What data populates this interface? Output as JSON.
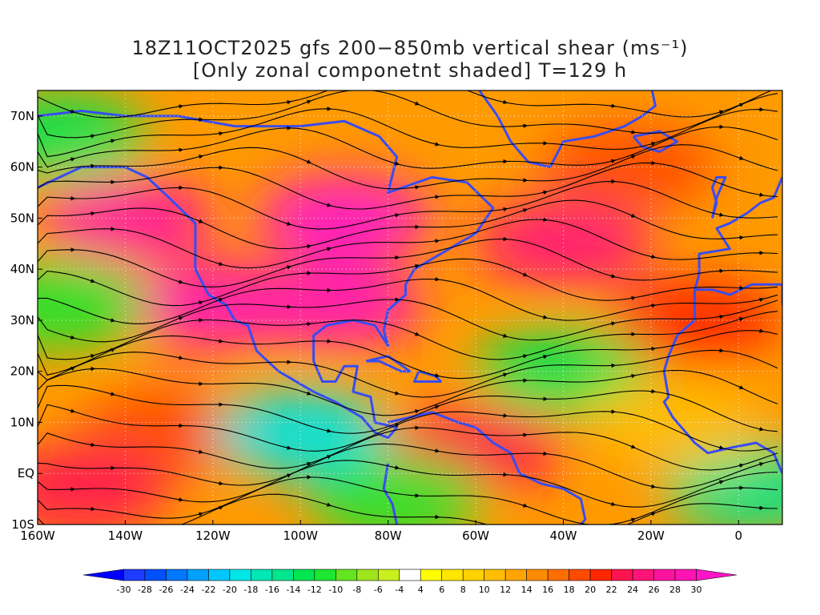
{
  "title": {
    "line1": "18Z11OCT2025 gfs 200−850mb vertical shear (ms⁻¹)",
    "line2": "[Only zonal componetnt shaded] T=129 h"
  },
  "axes": {
    "lon_range": [
      -160,
      10
    ],
    "lat_range": [
      -10,
      75
    ],
    "x_ticks": [
      {
        "value": -160,
        "label": "160W"
      },
      {
        "value": -140,
        "label": "140W"
      },
      {
        "value": -120,
        "label": "120W"
      },
      {
        "value": -100,
        "label": "100W"
      },
      {
        "value": -80,
        "label": "80W"
      },
      {
        "value": -60,
        "label": "60W"
      },
      {
        "value": -40,
        "label": "40W"
      },
      {
        "value": -20,
        "label": "20W"
      },
      {
        "value": 0,
        "label": "0"
      }
    ],
    "y_ticks": [
      {
        "value": -10,
        "label": "10S"
      },
      {
        "value": 0,
        "label": "EQ"
      },
      {
        "value": 10,
        "label": "10N"
      },
      {
        "value": 20,
        "label": "20N"
      },
      {
        "value": 30,
        "label": "30N"
      },
      {
        "value": 40,
        "label": "40N"
      },
      {
        "value": 50,
        "label": "50N"
      },
      {
        "value": 60,
        "label": "60N"
      },
      {
        "value": 70,
        "label": "70N"
      }
    ]
  },
  "colorbar": {
    "labels": [
      "-30",
      "-28",
      "-26",
      "-24",
      "-22",
      "-20",
      "-18",
      "-16",
      "-14",
      "-12",
      "-10",
      "-8",
      "-6",
      "-4",
      "4",
      "6",
      "8",
      "10",
      "12",
      "14",
      "16",
      "18",
      "20",
      "22",
      "24",
      "26",
      "28",
      "30"
    ],
    "colors": [
      "#0000ff",
      "#1e3cff",
      "#0050ff",
      "#0078ff",
      "#00a0ff",
      "#00c8ff",
      "#00e6e6",
      "#00e6b4",
      "#00e68c",
      "#00e650",
      "#1ee632",
      "#64e61e",
      "#a0e61e",
      "#c8f01e",
      "#ffffff",
      "#ffff00",
      "#ffe600",
      "#ffd200",
      "#ffbe00",
      "#ffa500",
      "#ff8c00",
      "#ff6e00",
      "#ff4b00",
      "#ff2800",
      "#ff1450",
      "#ff1478",
      "#ff14a0",
      "#ff14b4",
      "#ff14c8"
    ]
  },
  "chart_data": {
    "type": "heatmap",
    "variable": "zonal vertical shear 200-850mb (m/s)",
    "field_centers": [
      {
        "lon": -140,
        "lat": 50,
        "value": 26
      },
      {
        "lon": -120,
        "lat": 33,
        "value": 28
      },
      {
        "lon": -90,
        "lat": 50,
        "value": 30
      },
      {
        "lon": -92,
        "lat": 33,
        "value": 28
      },
      {
        "lon": -10,
        "lat": 30,
        "value": 20
      },
      {
        "lon": -40,
        "lat": 45,
        "value": 24
      },
      {
        "lon": -60,
        "lat": 5,
        "value": 22
      },
      {
        "lon": -130,
        "lat": 8,
        "value": 18
      },
      {
        "lon": -150,
        "lat": -3,
        "value": 22
      },
      {
        "lon": -100,
        "lat": 8,
        "value": -20
      },
      {
        "lon": -78,
        "lat": -5,
        "value": -12
      },
      {
        "lon": -40,
        "lat": 20,
        "value": -14
      },
      {
        "lon": 3,
        "lat": -3,
        "value": -16
      },
      {
        "lon": -155,
        "lat": 66,
        "value": -14
      },
      {
        "lon": -155,
        "lat": 33,
        "value": -12
      },
      {
        "lon": -15,
        "lat": 10,
        "value": 10
      },
      {
        "lon": -25,
        "lat": 60,
        "value": 18
      }
    ]
  }
}
